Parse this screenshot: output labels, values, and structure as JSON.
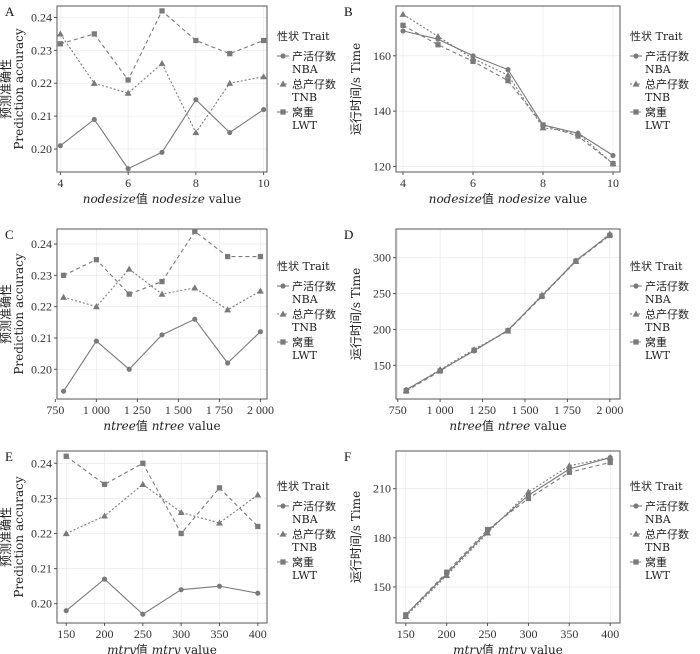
{
  "colors": {
    "series": "#7a7a7a",
    "frame": "#555555",
    "grid": "#e6e6e6",
    "text": "#333333"
  },
  "legend": {
    "title": "性状 Trait",
    "items": [
      {
        "label_cn": "产活仔数",
        "label_en": "NBA",
        "shape": "circle",
        "dash": "solid"
      },
      {
        "label_cn": "总产仔数",
        "label_en": "TNB",
        "shape": "triangle",
        "dash": "dotted"
      },
      {
        "label_cn": "窝重",
        "label_en": "LWT",
        "shape": "square",
        "dash": "dashed"
      }
    ]
  },
  "chart_data": [
    {
      "panel": "A",
      "type": "line",
      "xlabel": "nodesize值 nodesize value",
      "xlabel_parts": [
        "nodesize",
        "值 ",
        "nodesize",
        " value"
      ],
      "ylabel_cn": "预测准确性",
      "ylabel_en": "Prediction accuracy",
      "xlim": [
        3.9,
        10.1
      ],
      "ylim": [
        0.193,
        0.2435
      ],
      "xticks": [
        4,
        6,
        8,
        10
      ],
      "xtick_labels": [
        "4",
        "6",
        "8",
        "10"
      ],
      "yticks": [
        0.2,
        0.21,
        0.22,
        0.23,
        0.24
      ],
      "ytick_labels": [
        "0.20",
        "0.21",
        "0.22",
        "0.23",
        "0.24"
      ],
      "x": [
        4,
        5,
        6,
        7,
        8,
        9,
        10
      ],
      "series": [
        {
          "name": "NBA",
          "values": [
            0.201,
            0.209,
            0.194,
            0.199,
            0.215,
            0.205,
            0.212
          ]
        },
        {
          "name": "TNB",
          "values": [
            0.235,
            0.22,
            0.217,
            0.226,
            0.205,
            0.22,
            0.222
          ]
        },
        {
          "name": "LWT",
          "values": [
            0.232,
            0.235,
            0.221,
            0.242,
            0.233,
            0.229,
            0.233
          ]
        }
      ]
    },
    {
      "panel": "B",
      "type": "line",
      "xlabel": "nodesize值 nodesize value",
      "xlabel_parts": [
        "nodesize",
        "值 ",
        "nodesize",
        " value"
      ],
      "ylabel_cn": "运行时间/s",
      "ylabel_en": "Time",
      "xlim": [
        3.8,
        10.2
      ],
      "ylim": [
        118,
        178
      ],
      "xticks": [
        4,
        6,
        8,
        10
      ],
      "xtick_labels": [
        "4",
        "6",
        "8",
        "10"
      ],
      "yticks": [
        120,
        140,
        160
      ],
      "ytick_labels": [
        "120",
        "140",
        "160"
      ],
      "x": [
        4,
        5,
        6,
        7,
        8,
        9,
        10
      ],
      "series": [
        {
          "name": "NBA",
          "values": [
            169,
            166,
            160,
            155,
            135,
            132,
            124
          ]
        },
        {
          "name": "TNB",
          "values": [
            175,
            167,
            159,
            153,
            134,
            132,
            121
          ]
        },
        {
          "name": "LWT",
          "values": [
            171,
            164,
            158,
            151,
            135,
            131,
            121
          ]
        }
      ]
    },
    {
      "panel": "C",
      "type": "line",
      "xlabel": "ntree值 ntree value",
      "xlabel_parts": [
        "ntree",
        "值 ",
        "ntree",
        " value"
      ],
      "ylabel_cn": "预测准确性",
      "ylabel_en": "Prediction accuracy",
      "xlim": [
        760,
        2040
      ],
      "ylim": [
        0.1905,
        0.2448
      ],
      "xticks": [
        750,
        1000,
        1250,
        1500,
        1750,
        2000
      ],
      "xtick_labels": [
        "750",
        "1 000",
        "1 250",
        "1 500",
        "1 750",
        "2 000"
      ],
      "yticks": [
        0.2,
        0.21,
        0.22,
        0.23,
        0.24
      ],
      "ytick_labels": [
        "0.20",
        "0.21",
        "0.22",
        "0.23",
        "0.24"
      ],
      "x": [
        800,
        1000,
        1200,
        1400,
        1600,
        1800,
        2000
      ],
      "series": [
        {
          "name": "NBA",
          "values": [
            0.193,
            0.209,
            0.2,
            0.211,
            0.216,
            0.202,
            0.212
          ]
        },
        {
          "name": "TNB",
          "values": [
            0.223,
            0.22,
            0.232,
            0.224,
            0.226,
            0.219,
            0.225
          ]
        },
        {
          "name": "LWT",
          "values": [
            0.23,
            0.235,
            0.224,
            0.228,
            0.244,
            0.236,
            0.236
          ]
        }
      ]
    },
    {
      "panel": "D",
      "type": "line",
      "xlabel": "ntree值 ntree value",
      "xlabel_parts": [
        "ntree",
        "值 ",
        "ntree",
        " value"
      ],
      "ylabel_cn": "运行时间/s",
      "ylabel_en": "Time",
      "xlim": [
        740,
        2060
      ],
      "ylim": [
        103,
        340
      ],
      "xticks": [
        750,
        1000,
        1250,
        1500,
        1750,
        2000
      ],
      "xtick_labels": [
        "750",
        "1 000",
        "1 250",
        "1 500",
        "1 750",
        "2 000"
      ],
      "yticks": [
        150,
        200,
        250,
        300
      ],
      "ytick_labels": [
        "150",
        "200",
        "250",
        "300"
      ],
      "x": [
        800,
        1000,
        1200,
        1400,
        1600,
        1800,
        2000
      ],
      "series": [
        {
          "name": "NBA",
          "values": [
            116,
            143,
            170,
            199,
            247,
            296,
            332
          ]
        },
        {
          "name": "TNB",
          "values": [
            115,
            144,
            172,
            198,
            248,
            295,
            333
          ]
        },
        {
          "name": "LWT",
          "values": [
            114,
            142,
            171,
            198,
            246,
            295,
            331
          ]
        }
      ]
    },
    {
      "panel": "E",
      "type": "line",
      "xlabel": "mtry值 mtry value",
      "xlabel_parts": [
        "mtry",
        "值 ",
        "mtry",
        " value"
      ],
      "ylabel_cn": "预测准确性",
      "ylabel_en": "Prediction accuracy",
      "xlim": [
        138,
        412
      ],
      "ylim": [
        0.1945,
        0.2435
      ],
      "xticks": [
        150,
        200,
        250,
        300,
        350,
        400
      ],
      "xtick_labels": [
        "150",
        "200",
        "250",
        "300",
        "350",
        "400"
      ],
      "yticks": [
        0.2,
        0.21,
        0.22,
        0.23,
        0.24
      ],
      "ytick_labels": [
        "0.20",
        "0.21",
        "0.22",
        "0.23",
        "0.24"
      ],
      "x": [
        150,
        200,
        250,
        300,
        350,
        400
      ],
      "series": [
        {
          "name": "NBA",
          "values": [
            0.198,
            0.207,
            0.197,
            0.204,
            0.205,
            0.203
          ]
        },
        {
          "name": "TNB",
          "values": [
            0.22,
            0.225,
            0.234,
            0.226,
            0.223,
            0.231
          ]
        },
        {
          "name": "LWT",
          "values": [
            0.242,
            0.234,
            0.24,
            0.22,
            0.233,
            0.222
          ]
        }
      ]
    },
    {
      "panel": "F",
      "type": "line",
      "xlabel": "mtry值 mtry value",
      "xlabel_parts": [
        "mtry",
        "值 ",
        "mtry",
        " value"
      ],
      "ylabel_cn": "运行时间/s",
      "ylabel_en": "Time",
      "xlim": [
        138,
        412
      ],
      "ylim": [
        128,
        233
      ],
      "xticks": [
        150,
        200,
        250,
        300,
        350,
        400
      ],
      "xtick_labels": [
        "150",
        "200",
        "250",
        "300",
        "350",
        "400"
      ],
      "yticks": [
        150,
        180,
        210
      ],
      "ytick_labels": [
        "150",
        "180",
        "210"
      ],
      "x": [
        150,
        200,
        250,
        300,
        350,
        400
      ],
      "series": [
        {
          "name": "NBA",
          "values": [
            133,
            158,
            184,
            206,
            222,
            229
          ]
        },
        {
          "name": "TNB",
          "values": [
            132,
            157,
            183,
            208,
            224,
            229
          ]
        },
        {
          "name": "LWT",
          "values": [
            133,
            159,
            185,
            204,
            220,
            226
          ]
        }
      ]
    }
  ]
}
